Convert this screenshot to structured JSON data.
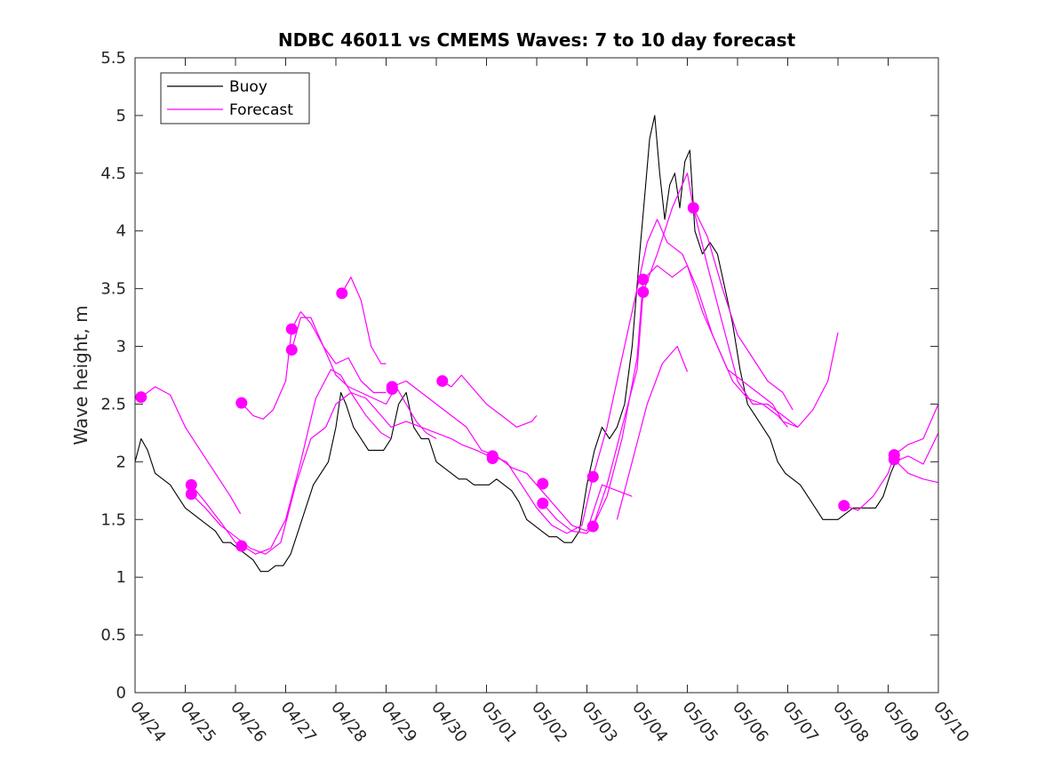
{
  "chart_data": {
    "type": "line",
    "title": "NDBC 46011 vs CMEMS Waves: 7 to 10 day forecast",
    "xlabel": "",
    "ylabel": "Wave height, m",
    "xlim": [
      0,
      16
    ],
    "ylim": [
      0,
      5.5
    ],
    "x_ticks": [
      0,
      1,
      2,
      3,
      4,
      5,
      6,
      7,
      8,
      9,
      10,
      11,
      12,
      13,
      14,
      15,
      16
    ],
    "x_tick_labels": [
      "04/24",
      "04/25",
      "04/26",
      "04/27",
      "04/28",
      "04/29",
      "04/30",
      "05/01",
      "05/02",
      "05/03",
      "05/04",
      "05/05",
      "05/06",
      "05/07",
      "05/08",
      "05/09",
      "05/10"
    ],
    "y_ticks": [
      0,
      0.5,
      1,
      1.5,
      2,
      2.5,
      3,
      3.5,
      4,
      4.5,
      5,
      5.5
    ],
    "y_tick_labels": [
      "0",
      "0.5",
      "1",
      "1.5",
      "2",
      "2.5",
      "3",
      "3.5",
      "4",
      "4.5",
      "5",
      "5.5"
    ],
    "grid": false,
    "legend": {
      "position": "top-left",
      "entries": [
        {
          "label": "Buoy",
          "color": "#000000"
        },
        {
          "label": "Forecast",
          "color": "#ff00ff"
        }
      ]
    },
    "series": [
      {
        "name": "Buoy",
        "color": "#000000",
        "x": [
          0,
          0.12,
          0.25,
          0.4,
          0.55,
          0.7,
          0.85,
          1.0,
          1.15,
          1.3,
          1.45,
          1.6,
          1.75,
          1.9,
          2.05,
          2.2,
          2.35,
          2.5,
          2.65,
          2.8,
          2.95,
          3.1,
          3.25,
          3.4,
          3.55,
          3.7,
          3.85,
          4.0,
          4.1,
          4.2,
          4.35,
          4.5,
          4.65,
          4.8,
          4.95,
          5.1,
          5.25,
          5.4,
          5.55,
          5.7,
          5.85,
          6.0,
          6.15,
          6.3,
          6.45,
          6.6,
          6.75,
          6.9,
          7.05,
          7.2,
          7.35,
          7.5,
          7.65,
          7.8,
          7.95,
          8.1,
          8.25,
          8.4,
          8.55,
          8.7,
          8.85,
          9.0,
          9.15,
          9.3,
          9.45,
          9.6,
          9.75,
          9.9,
          10.05,
          10.15,
          10.25,
          10.35,
          10.45,
          10.55,
          10.65,
          10.75,
          10.85,
          10.95,
          11.05,
          11.15,
          11.3,
          11.45,
          11.6,
          11.75,
          11.9,
          12.05,
          12.2,
          12.35,
          12.5,
          12.65,
          12.8,
          12.95,
          13.1,
          13.25,
          13.4,
          13.55,
          13.7,
          13.85,
          14.0,
          14.15,
          14.3,
          14.45,
          14.6,
          14.75,
          14.9,
          15.05,
          15.15
        ],
        "y": [
          2.0,
          2.2,
          2.1,
          1.9,
          1.85,
          1.8,
          1.7,
          1.6,
          1.55,
          1.5,
          1.45,
          1.4,
          1.3,
          1.3,
          1.25,
          1.2,
          1.15,
          1.05,
          1.05,
          1.1,
          1.1,
          1.2,
          1.4,
          1.6,
          1.8,
          1.9,
          2.0,
          2.3,
          2.6,
          2.5,
          2.3,
          2.2,
          2.1,
          2.1,
          2.1,
          2.2,
          2.5,
          2.6,
          2.3,
          2.2,
          2.2,
          2.0,
          1.95,
          1.9,
          1.85,
          1.85,
          1.8,
          1.8,
          1.8,
          1.85,
          1.8,
          1.75,
          1.65,
          1.5,
          1.45,
          1.4,
          1.35,
          1.35,
          1.3,
          1.3,
          1.4,
          1.8,
          2.1,
          2.3,
          2.2,
          2.3,
          2.5,
          3.0,
          3.8,
          4.3,
          4.8,
          5.0,
          4.5,
          4.1,
          4.4,
          4.5,
          4.2,
          4.6,
          4.7,
          4.0,
          3.8,
          3.9,
          3.8,
          3.5,
          3.2,
          2.8,
          2.5,
          2.4,
          2.3,
          2.2,
          2.0,
          1.9,
          1.85,
          1.8,
          1.7,
          1.6,
          1.5,
          1.5,
          1.5,
          1.55,
          1.6,
          1.6,
          1.6,
          1.6,
          1.7,
          1.9,
          2.0
        ]
      },
      {
        "name": "Forecast",
        "color": "#ff00ff",
        "x": [
          0.12,
          0.4,
          0.7,
          1.0,
          1.3,
          1.6,
          1.9,
          2.1
        ],
        "y": [
          2.56,
          2.65,
          2.58,
          2.3,
          2.1,
          1.9,
          1.7,
          1.55
        ]
      },
      {
        "name": "Forecast",
        "color": "#ff00ff",
        "x": [
          1.12,
          1.4,
          1.7,
          2.0,
          2.15,
          2.4,
          2.7,
          3.0,
          3.3,
          3.6,
          3.9,
          4.1,
          4.3,
          4.6,
          4.9,
          5.1
        ],
        "y": [
          1.8,
          1.65,
          1.48,
          1.3,
          1.27,
          1.2,
          1.25,
          1.5,
          2.0,
          2.55,
          2.8,
          2.75,
          2.6,
          2.4,
          2.25,
          2.2
        ]
      },
      {
        "name": "Forecast",
        "color": "#ff00ff",
        "x": [
          1.12,
          1.4,
          1.7,
          2.0,
          2.3,
          2.6,
          2.9,
          3.2,
          3.5,
          3.8,
          4.0,
          4.3,
          4.6,
          4.9,
          5.1,
          5.4,
          5.7,
          6.0,
          6.3,
          6.5,
          6.8,
          7.1
        ],
        "y": [
          1.72,
          1.6,
          1.45,
          1.35,
          1.25,
          1.2,
          1.3,
          1.8,
          2.2,
          2.3,
          2.5,
          2.6,
          2.55,
          2.4,
          2.3,
          2.35,
          2.3,
          2.25,
          2.2,
          2.15,
          2.1,
          2.04
        ]
      },
      {
        "name": "Forecast",
        "color": "#ff00ff",
        "x": [
          2.12,
          2.35,
          2.55,
          2.75,
          3.0,
          3.12,
          3.3,
          3.5,
          3.75,
          4.0,
          4.25,
          4.5,
          4.75,
          5.0
        ],
        "y": [
          2.51,
          2.4,
          2.37,
          2.45,
          2.7,
          3.15,
          3.3,
          3.2,
          3.0,
          2.85,
          2.9,
          2.7,
          2.6,
          2.6
        ]
      },
      {
        "name": "Forecast",
        "color": "#ff00ff",
        "x": [
          3.12,
          3.3,
          3.5,
          3.75,
          4.0,
          4.25,
          4.5,
          4.75,
          5.0,
          5.2,
          5.4,
          5.6,
          5.8,
          6.0
        ],
        "y": [
          2.97,
          3.25,
          3.25,
          3.0,
          2.75,
          2.65,
          2.6,
          2.55,
          2.5,
          2.65,
          2.5,
          2.35,
          2.25,
          2.2
        ]
      },
      {
        "name": "Forecast",
        "color": "#ff00ff",
        "x": [
          4.12,
          4.3,
          4.5,
          4.7,
          4.9,
          5.0
        ],
        "y": [
          3.46,
          3.6,
          3.4,
          3.0,
          2.85,
          2.85
        ]
      },
      {
        "name": "Forecast",
        "color": "#ff00ff",
        "x": [
          5.12,
          5.4,
          5.7,
          6.0,
          6.3,
          6.6,
          6.9,
          7.2,
          7.5,
          7.8,
          8.1,
          8.4,
          8.7,
          9.0,
          9.3,
          9.6,
          9.9
        ],
        "y": [
          2.65,
          2.7,
          2.6,
          2.5,
          2.4,
          2.3,
          2.1,
          2.05,
          1.95,
          1.9,
          1.75,
          1.6,
          1.45,
          1.4,
          1.8,
          1.75,
          1.7
        ]
      },
      {
        "name": "Forecast",
        "color": "#ff00ff",
        "x": [
          6.12,
          6.3,
          6.5,
          6.8,
          7.0,
          7.3,
          7.6,
          7.9,
          8.0
        ],
        "y": [
          2.7,
          2.65,
          2.75,
          2.6,
          2.5,
          2.4,
          2.3,
          2.35,
          2.4
        ]
      },
      {
        "name": "Forecast",
        "color": "#ff00ff",
        "x": [
          7.12,
          7.4,
          7.7,
          8.0,
          8.3,
          8.6,
          8.9,
          9.12,
          9.4,
          9.7,
          10.0,
          10.2,
          10.4,
          10.6,
          10.9,
          11.2,
          11.5,
          11.8,
          12.1,
          12.4,
          12.7,
          12.9,
          13.2,
          13.5,
          13.8,
          14.0
        ],
        "y": [
          2.05,
          2.0,
          1.8,
          1.6,
          1.45,
          1.38,
          1.45,
          1.87,
          2.3,
          2.9,
          3.5,
          3.9,
          4.1,
          3.9,
          3.8,
          3.5,
          3.1,
          2.8,
          2.7,
          2.6,
          2.5,
          2.35,
          2.3,
          2.45,
          2.7,
          3.12
        ]
      },
      {
        "name": "Forecast",
        "color": "#ff00ff",
        "x": [
          8.12,
          8.4,
          8.7,
          9.0,
          9.12,
          9.4,
          9.7,
          10.0,
          10.12,
          10.4,
          10.7,
          11.0,
          11.12,
          11.4,
          11.7,
          12.0,
          12.3,
          12.6,
          12.9,
          13.2
        ],
        "y": [
          1.64,
          1.5,
          1.4,
          1.38,
          1.44,
          1.8,
          2.3,
          2.8,
          3.47,
          3.8,
          4.2,
          4.5,
          4.2,
          3.7,
          3.2,
          2.7,
          2.5,
          2.5,
          2.4,
          2.3
        ]
      },
      {
        "name": "Forecast",
        "color": "#ff00ff",
        "x": [
          9.12,
          9.4,
          9.7,
          10.0,
          10.12,
          10.4,
          10.7,
          11.0,
          11.3,
          11.6,
          11.9,
          12.2,
          12.5,
          12.8,
          13.0
        ],
        "y": [
          1.44,
          1.7,
          2.2,
          2.9,
          3.58,
          3.7,
          3.6,
          3.7,
          3.3,
          3.0,
          2.7,
          2.55,
          2.5,
          2.4,
          2.3
        ]
      },
      {
        "name": "Forecast",
        "color": "#ff00ff",
        "x": [
          9.6,
          9.9,
          10.2,
          10.5,
          10.8,
          11.0
        ],
        "y": [
          1.5,
          2.0,
          2.5,
          2.85,
          3.0,
          2.78
        ]
      },
      {
        "name": "Forecast",
        "color": "#ff00ff",
        "x": [
          11.12,
          11.4,
          11.7,
          12.0,
          12.3,
          12.6,
          12.9,
          13.1
        ],
        "y": [
          4.2,
          3.95,
          3.5,
          3.1,
          2.9,
          2.7,
          2.6,
          2.45
        ]
      },
      {
        "name": "Forecast",
        "color": "#ff00ff",
        "x": [
          14.12,
          14.4,
          14.7,
          15.0,
          15.12,
          15.4,
          15.7,
          16.0
        ],
        "y": [
          1.62,
          1.58,
          1.7,
          1.9,
          2.06,
          2.15,
          2.2,
          2.5
        ]
      },
      {
        "name": "Forecast",
        "color": "#ff00ff",
        "x": [
          15.12,
          15.4,
          15.7,
          16.0
        ],
        "y": [
          2.02,
          1.9,
          1.85,
          1.82
        ]
      },
      {
        "name": "Forecast",
        "color": "#ff00ff",
        "x": [
          15.12,
          15.4,
          15.7,
          16.0
        ],
        "y": [
          2.0,
          2.05,
          1.98,
          2.25
        ]
      }
    ],
    "markers": {
      "color": "#ff00ff",
      "points": [
        {
          "x": 0.12,
          "y": 2.56
        },
        {
          "x": 1.12,
          "y": 1.8
        },
        {
          "x": 1.12,
          "y": 1.72
        },
        {
          "x": 2.12,
          "y": 2.51
        },
        {
          "x": 2.12,
          "y": 1.27
        },
        {
          "x": 3.12,
          "y": 3.15
        },
        {
          "x": 3.12,
          "y": 2.97
        },
        {
          "x": 4.12,
          "y": 3.46
        },
        {
          "x": 5.12,
          "y": 2.65
        },
        {
          "x": 5.12,
          "y": 2.63
        },
        {
          "x": 6.12,
          "y": 2.7
        },
        {
          "x": 7.12,
          "y": 2.05
        },
        {
          "x": 7.12,
          "y": 2.03
        },
        {
          "x": 8.12,
          "y": 1.81
        },
        {
          "x": 8.12,
          "y": 1.64
        },
        {
          "x": 9.12,
          "y": 1.87
        },
        {
          "x": 9.12,
          "y": 1.44
        },
        {
          "x": 10.12,
          "y": 3.58
        },
        {
          "x": 10.12,
          "y": 3.47
        },
        {
          "x": 11.12,
          "y": 4.2
        },
        {
          "x": 14.12,
          "y": 1.62
        },
        {
          "x": 15.12,
          "y": 2.06
        },
        {
          "x": 15.12,
          "y": 2.02
        }
      ]
    }
  }
}
